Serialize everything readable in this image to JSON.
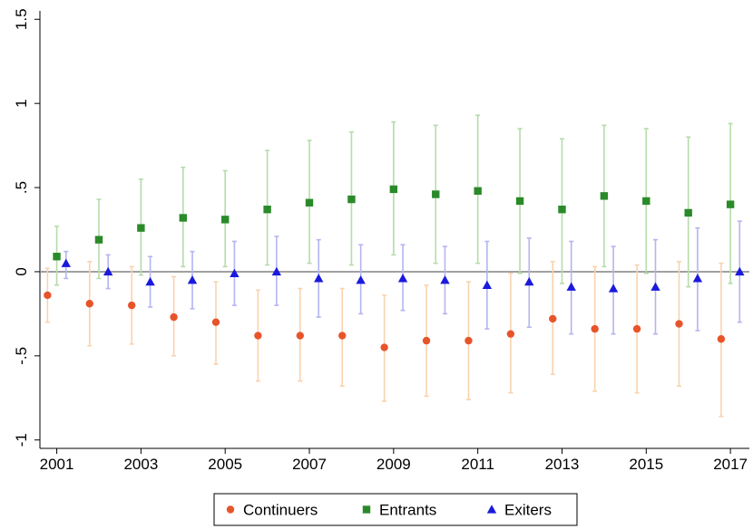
{
  "chart_data": {
    "type": "scatter",
    "x": [
      2001,
      2002,
      2003,
      2004,
      2005,
      2006,
      2007,
      2008,
      2009,
      2010,
      2011,
      2012,
      2013,
      2014,
      2015,
      2016,
      2017
    ],
    "x_tick_labels": [
      "2001",
      "2003",
      "2005",
      "2007",
      "2009",
      "2011",
      "2013",
      "2015",
      "2017"
    ],
    "y_tick_labels": [
      "-1",
      "-.5",
      "0",
      ".5",
      "1",
      "1.5"
    ],
    "y_ticks": [
      -1,
      -0.5,
      0,
      0.5,
      1,
      1.5
    ],
    "ylim": [
      -1.05,
      1.55
    ],
    "xlim": [
      2000.6,
      2017.45
    ],
    "reference_line": 0,
    "grid": false,
    "legend_position": "bottom",
    "series": [
      {
        "name": "Continuers",
        "marker": "circle",
        "color": "#e8542a",
        "ci_color": "#f8d3b0",
        "x_offset": -0.22,
        "values": [
          -0.14,
          -0.19,
          -0.2,
          -0.27,
          -0.3,
          -0.38,
          -0.38,
          -0.38,
          -0.45,
          -0.41,
          -0.41,
          -0.37,
          -0.28,
          -0.34,
          -0.34,
          -0.31,
          -0.4
        ],
        "lower": [
          -0.3,
          -0.44,
          -0.43,
          -0.5,
          -0.55,
          -0.65,
          -0.65,
          -0.68,
          -0.77,
          -0.74,
          -0.76,
          -0.72,
          -0.61,
          -0.71,
          -0.72,
          -0.68,
          -0.86
        ],
        "upper": [
          0.02,
          0.06,
          0.03,
          -0.03,
          -0.06,
          -0.11,
          -0.1,
          -0.1,
          -0.14,
          -0.08,
          -0.06,
          -0.01,
          0.06,
          0.03,
          0.04,
          0.06,
          0.05
        ]
      },
      {
        "name": "Entrants",
        "marker": "square",
        "color": "#2a8a2a",
        "ci_color": "#b6dcaa",
        "x_offset": 0,
        "values": [
          0.09,
          0.19,
          0.26,
          0.32,
          0.31,
          0.37,
          0.41,
          0.43,
          0.49,
          0.46,
          0.48,
          0.42,
          0.37,
          0.45,
          0.42,
          0.35,
          0.4
        ],
        "lower": [
          -0.08,
          -0.04,
          -0.02,
          0.03,
          0.03,
          0.04,
          0.05,
          0.04,
          0.1,
          0.05,
          0.05,
          -0.01,
          -0.07,
          0.03,
          -0.01,
          -0.09,
          -0.07
        ],
        "upper": [
          0.27,
          0.43,
          0.55,
          0.62,
          0.6,
          0.72,
          0.78,
          0.83,
          0.89,
          0.87,
          0.93,
          0.85,
          0.79,
          0.87,
          0.85,
          0.8,
          0.88
        ]
      },
      {
        "name": "Exiters",
        "marker": "triangle",
        "color": "#1a1adc",
        "ci_color": "#b4b4f2",
        "x_offset": 0.22,
        "values": [
          0.05,
          0.0,
          -0.06,
          -0.05,
          -0.01,
          0.0,
          -0.04,
          -0.05,
          -0.04,
          -0.05,
          -0.08,
          -0.06,
          -0.09,
          -0.1,
          -0.09,
          -0.04,
          0.0
        ],
        "lower": [
          -0.04,
          -0.1,
          -0.21,
          -0.22,
          -0.2,
          -0.2,
          -0.27,
          -0.25,
          -0.23,
          -0.25,
          -0.34,
          -0.33,
          -0.37,
          -0.37,
          -0.37,
          -0.35,
          -0.3
        ],
        "upper": [
          0.12,
          0.1,
          0.09,
          0.12,
          0.18,
          0.21,
          0.19,
          0.16,
          0.16,
          0.15,
          0.18,
          0.2,
          0.18,
          0.15,
          0.19,
          0.26,
          0.3
        ]
      }
    ]
  }
}
